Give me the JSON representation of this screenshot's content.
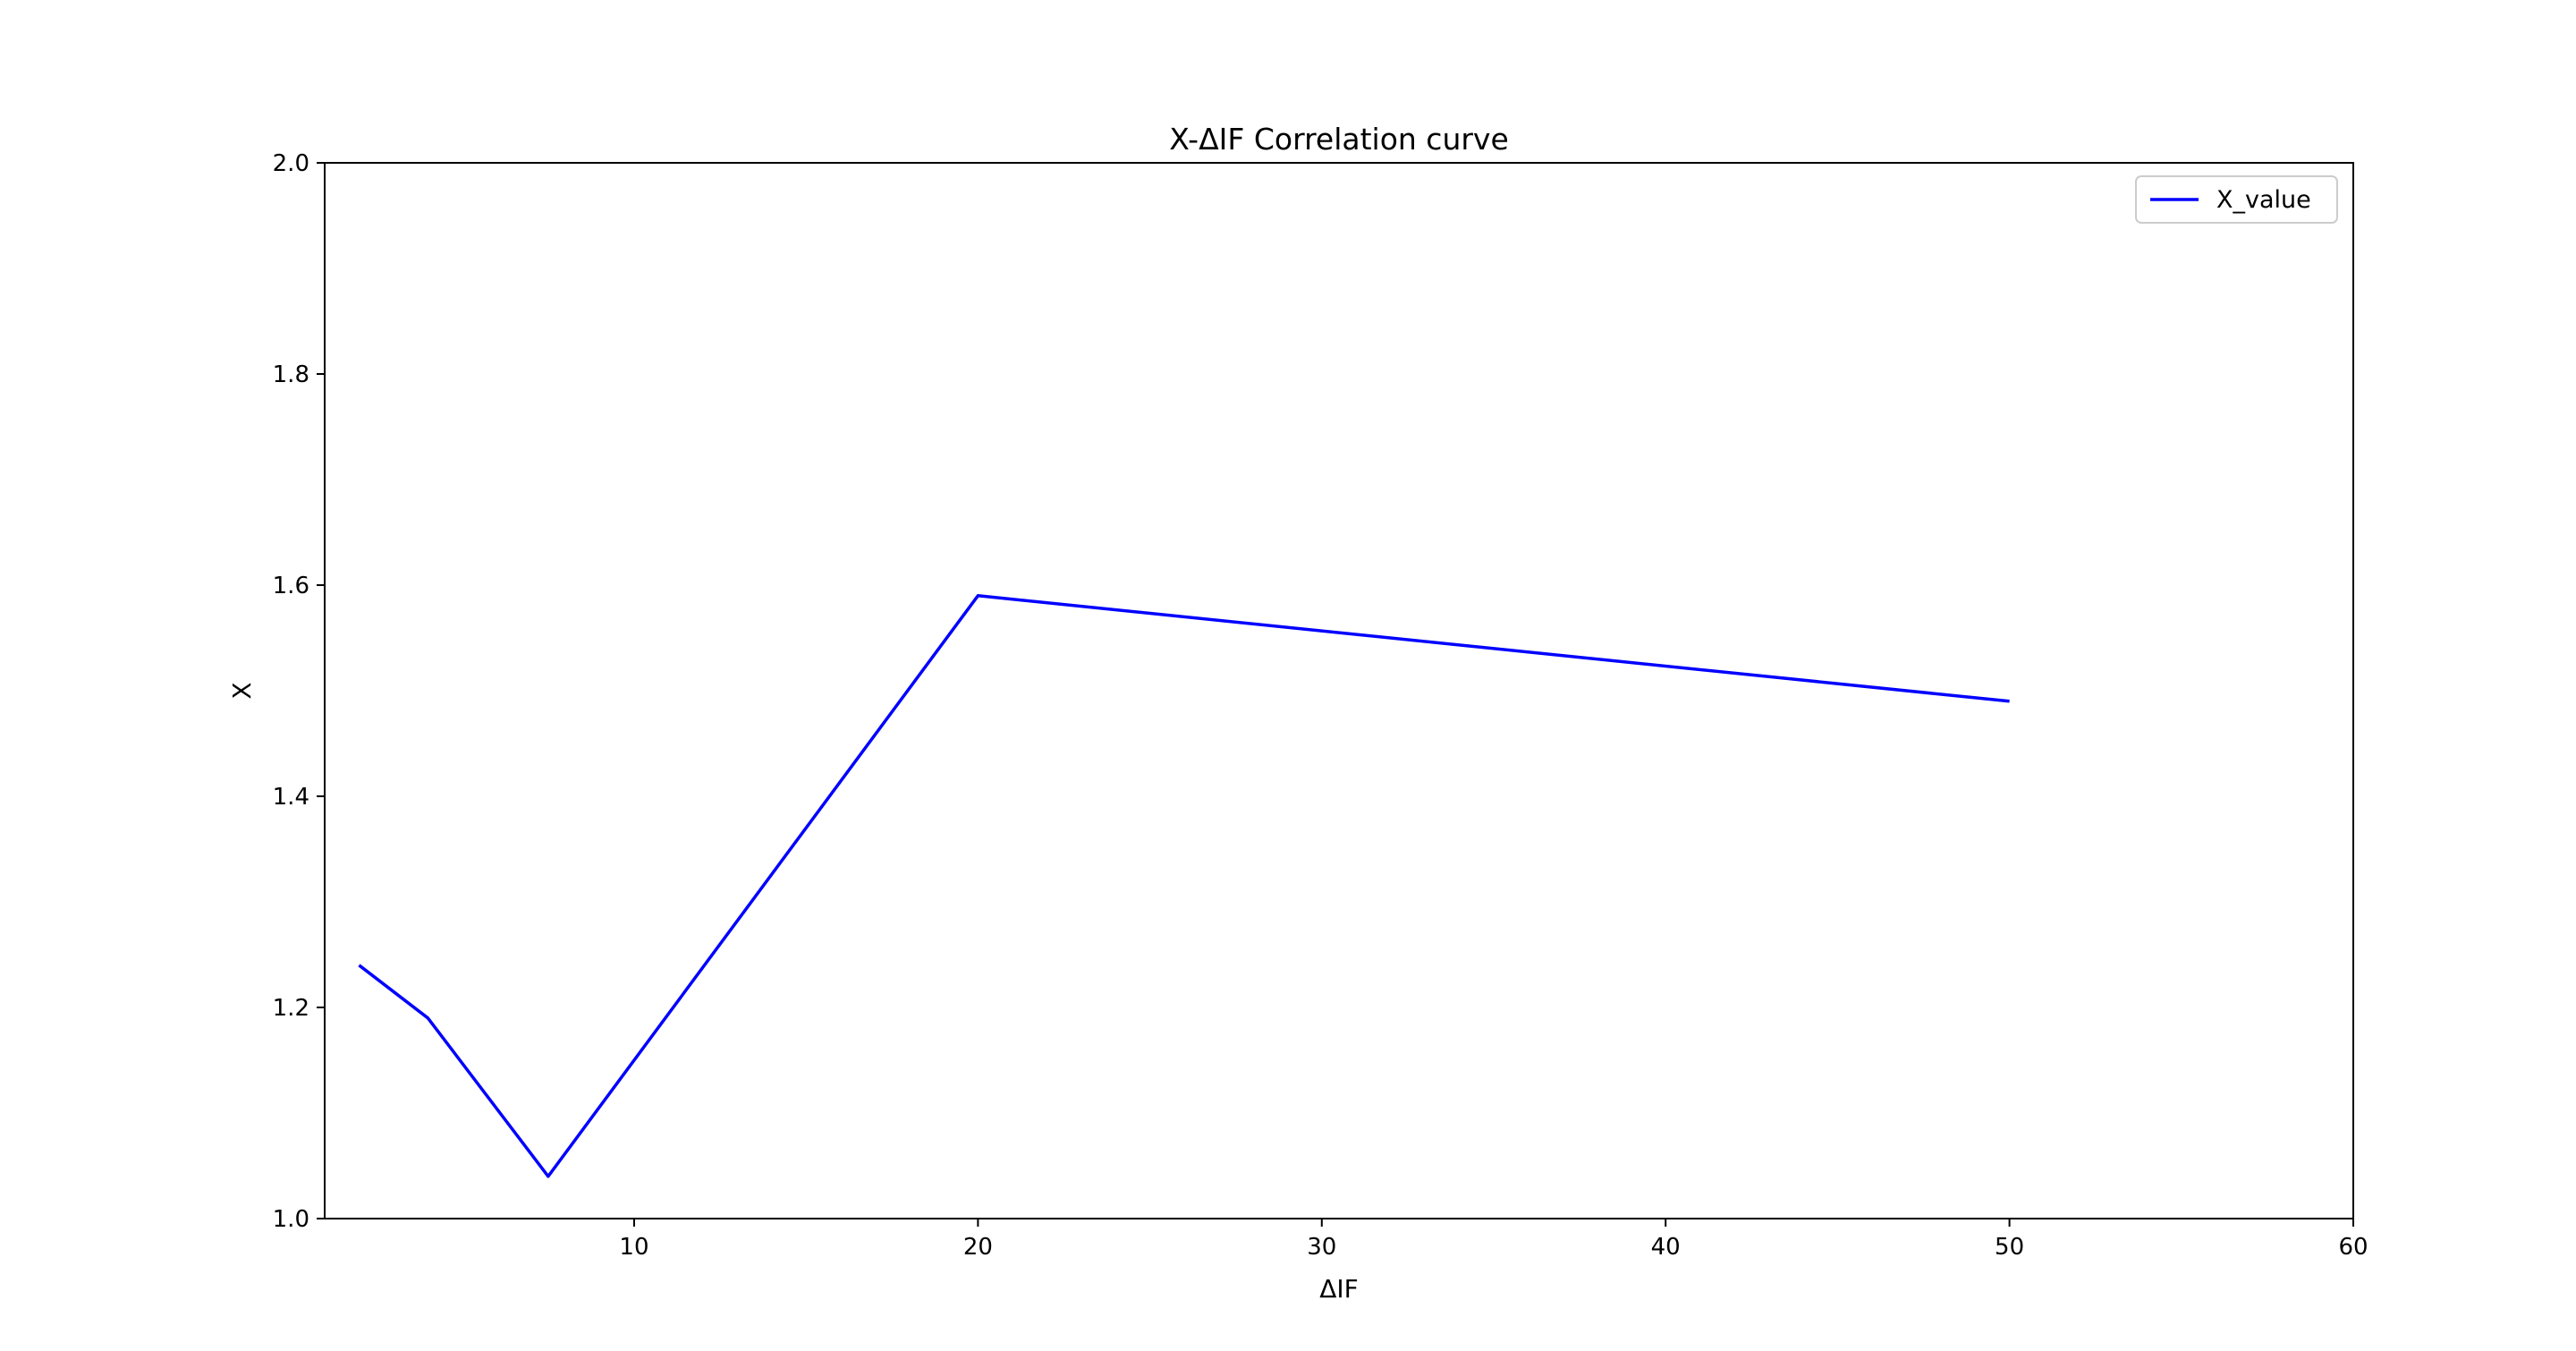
{
  "chart_data": {
    "type": "line",
    "title": "X-ΔIF Correlation curve",
    "xlabel": "ΔIF",
    "ylabel": "X",
    "xlim": [
      1,
      60
    ],
    "ylim": [
      1.0,
      2.0
    ],
    "xticks": [
      10,
      20,
      30,
      40,
      50,
      60
    ],
    "xtick_labels": [
      "10",
      "20",
      "30",
      "40",
      "50",
      "60"
    ],
    "yticks": [
      1.0,
      1.2,
      1.4,
      1.6,
      1.8,
      2.0
    ],
    "ytick_labels": [
      "1.0",
      "1.2",
      "1.4",
      "1.6",
      "1.8",
      "2.0"
    ],
    "grid": false,
    "legend_position": "top-right",
    "series": [
      {
        "name": "X_value",
        "color": "#0000ff",
        "x": [
          2,
          4,
          7.5,
          20,
          50
        ],
        "y": [
          1.24,
          1.19,
          1.04,
          1.59,
          1.49
        ]
      }
    ]
  }
}
